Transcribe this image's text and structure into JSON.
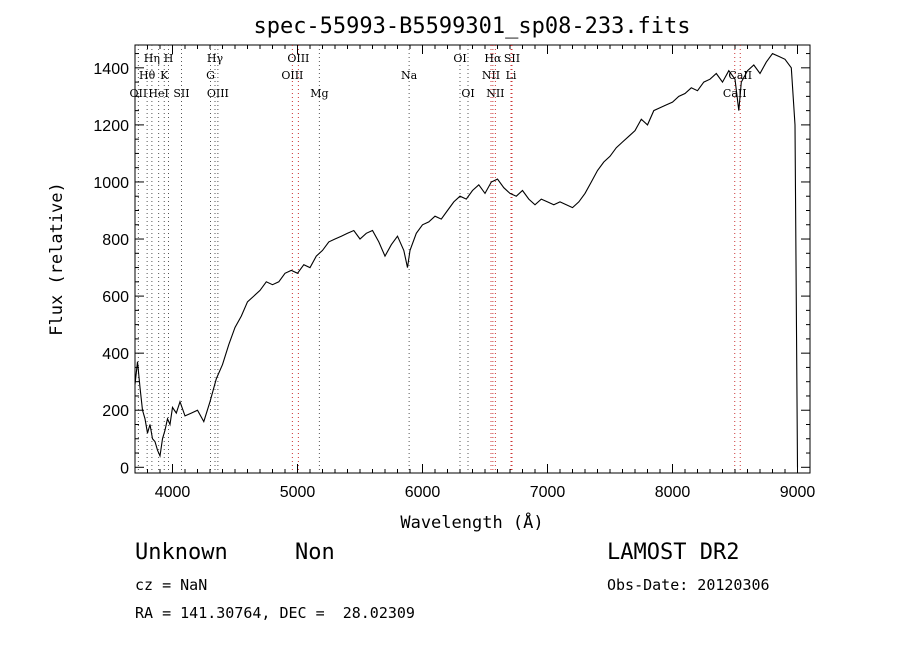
{
  "chart_data": {
    "type": "line",
    "title": "spec-55993-B5599301_sp08-233.fits",
    "xlabel": "Wavelength (Å)",
    "ylabel": "Flux (relative)",
    "xlim": [
      3700,
      9100
    ],
    "ylim": [
      -20,
      1480
    ],
    "xticks": [
      "4000",
      "5000",
      "6000",
      "7000",
      "8000",
      "9000"
    ],
    "xtick_values": [
      4000,
      5000,
      6000,
      7000,
      8000,
      9000
    ],
    "yticks": [
      "0",
      "200",
      "400",
      "600",
      "800",
      "1000",
      "1200",
      "1400"
    ],
    "ytick_values": [
      0,
      200,
      400,
      600,
      800,
      1000,
      1200,
      1400
    ],
    "grid": false,
    "legend": "none",
    "series": [
      {
        "x": [
          3700,
          3720,
          3740,
          3760,
          3780,
          3800,
          3820,
          3840,
          3860,
          3880,
          3900,
          3920,
          3940,
          3960,
          3980,
          4000,
          4030,
          4060,
          4100,
          4150,
          4200,
          4250,
          4300,
          4350,
          4400,
          4450,
          4500,
          4550,
          4600,
          4650,
          4700,
          4750,
          4800,
          4850,
          4900,
          4950,
          5000,
          5050,
          5100,
          5150,
          5200,
          5250,
          5300,
          5350,
          5400,
          5450,
          5500,
          5550,
          5600,
          5650,
          5700,
          5750,
          5800,
          5850,
          5880,
          5900,
          5950,
          6000,
          6050,
          6100,
          6150,
          6200,
          6250,
          6300,
          6350,
          6400,
          6450,
          6500,
          6550,
          6600,
          6650,
          6700,
          6750,
          6800,
          6850,
          6900,
          6950,
          7000,
          7050,
          7100,
          7150,
          7200,
          7250,
          7300,
          7350,
          7400,
          7450,
          7500,
          7550,
          7600,
          7650,
          7700,
          7750,
          7800,
          7850,
          7900,
          7950,
          8000,
          8050,
          8100,
          8150,
          8200,
          8250,
          8300,
          8350,
          8400,
          8450,
          8500,
          8530,
          8550,
          8600,
          8650,
          8700,
          8750,
          8800,
          8850,
          8900,
          8950,
          8980,
          9000
        ],
        "y": [
          290,
          370,
          280,
          200,
          170,
          120,
          150,
          100,
          90,
          60,
          40,
          100,
          130,
          170,
          150,
          210,
          190,
          230,
          180,
          190,
          200,
          160,
          230,
          310,
          360,
          430,
          490,
          530,
          580,
          600,
          620,
          650,
          640,
          650,
          680,
          690,
          680,
          710,
          700,
          740,
          760,
          790,
          800,
          810,
          820,
          830,
          800,
          820,
          830,
          790,
          740,
          780,
          810,
          760,
          700,
          760,
          820,
          850,
          860,
          880,
          870,
          900,
          930,
          950,
          940,
          970,
          990,
          960,
          1000,
          1010,
          980,
          960,
          950,
          970,
          940,
          920,
          940,
          930,
          920,
          930,
          920,
          910,
          930,
          960,
          1000,
          1040,
          1070,
          1090,
          1120,
          1140,
          1160,
          1180,
          1220,
          1200,
          1250,
          1260,
          1270,
          1280,
          1300,
          1310,
          1330,
          1320,
          1350,
          1360,
          1380,
          1350,
          1390,
          1360,
          1250,
          1350,
          1390,
          1410,
          1380,
          1420,
          1450,
          1440,
          1430,
          1400,
          1200,
          0
        ]
      }
    ],
    "lines": [
      {
        "name": "Hη",
        "x": 3835,
        "color": "#555555",
        "row": 0
      },
      {
        "name": "H",
        "x": 3968,
        "color": "#555555",
        "row": 0
      },
      {
        "name": "Hγ",
        "x": 4340,
        "color": "#555555",
        "row": 0
      },
      {
        "name": "OIII",
        "x": 5007,
        "color": "#cc3333",
        "row": 0
      },
      {
        "name": "OI",
        "x": 6300,
        "color": "#555555",
        "row": 0
      },
      {
        "name": "Hα",
        "x": 6563,
        "color": "#cc3333",
        "row": 0
      },
      {
        "name": "SII",
        "x": 6716,
        "color": "#cc3333",
        "row": 0
      },
      {
        "name": "Hθ",
        "x": 3797,
        "color": "#555555",
        "row": 1
      },
      {
        "name": "K",
        "x": 3934,
        "color": "#555555",
        "row": 1
      },
      {
        "name": "G",
        "x": 4304,
        "color": "#555555",
        "row": 1
      },
      {
        "name": "OIII",
        "x": 4959,
        "color": "#cc3333",
        "row": 1
      },
      {
        "name": "Na",
        "x": 5893,
        "color": "#555555",
        "row": 1
      },
      {
        "name": "NII",
        "x": 6548,
        "color": "#cc3333",
        "row": 1
      },
      {
        "name": "Li",
        "x": 6708,
        "color": "#cc3333",
        "row": 1
      },
      {
        "name": "CaII",
        "x": 8542,
        "color": "#cc3333",
        "row": 1
      },
      {
        "name": "OII",
        "x": 3727,
        "color": "#555555",
        "row": 2
      },
      {
        "name": "HeI",
        "x": 3889,
        "color": "#555555",
        "row": 2
      },
      {
        "name": "SII",
        "x": 4072,
        "color": "#555555",
        "row": 2
      },
      {
        "name": "OIII",
        "x": 4363,
        "color": "#555555",
        "row": 2
      },
      {
        "name": "Mg",
        "x": 5175,
        "color": "#555555",
        "row": 2
      },
      {
        "name": "OI",
        "x": 6364,
        "color": "#555555",
        "row": 2
      },
      {
        "name": "NII",
        "x": 6583,
        "color": "#cc3333",
        "row": 2
      },
      {
        "name": "CaII",
        "x": 8498,
        "color": "#cc3333",
        "row": 2
      }
    ]
  },
  "info": {
    "class_text": "Unknown",
    "subclass_text": "Non",
    "survey": "LAMOST DR2",
    "redshift": "cz = NaN",
    "obs_date": "Obs-Date: 20120306",
    "coords": "RA = 141.30764, DEC =  28.02309"
  }
}
